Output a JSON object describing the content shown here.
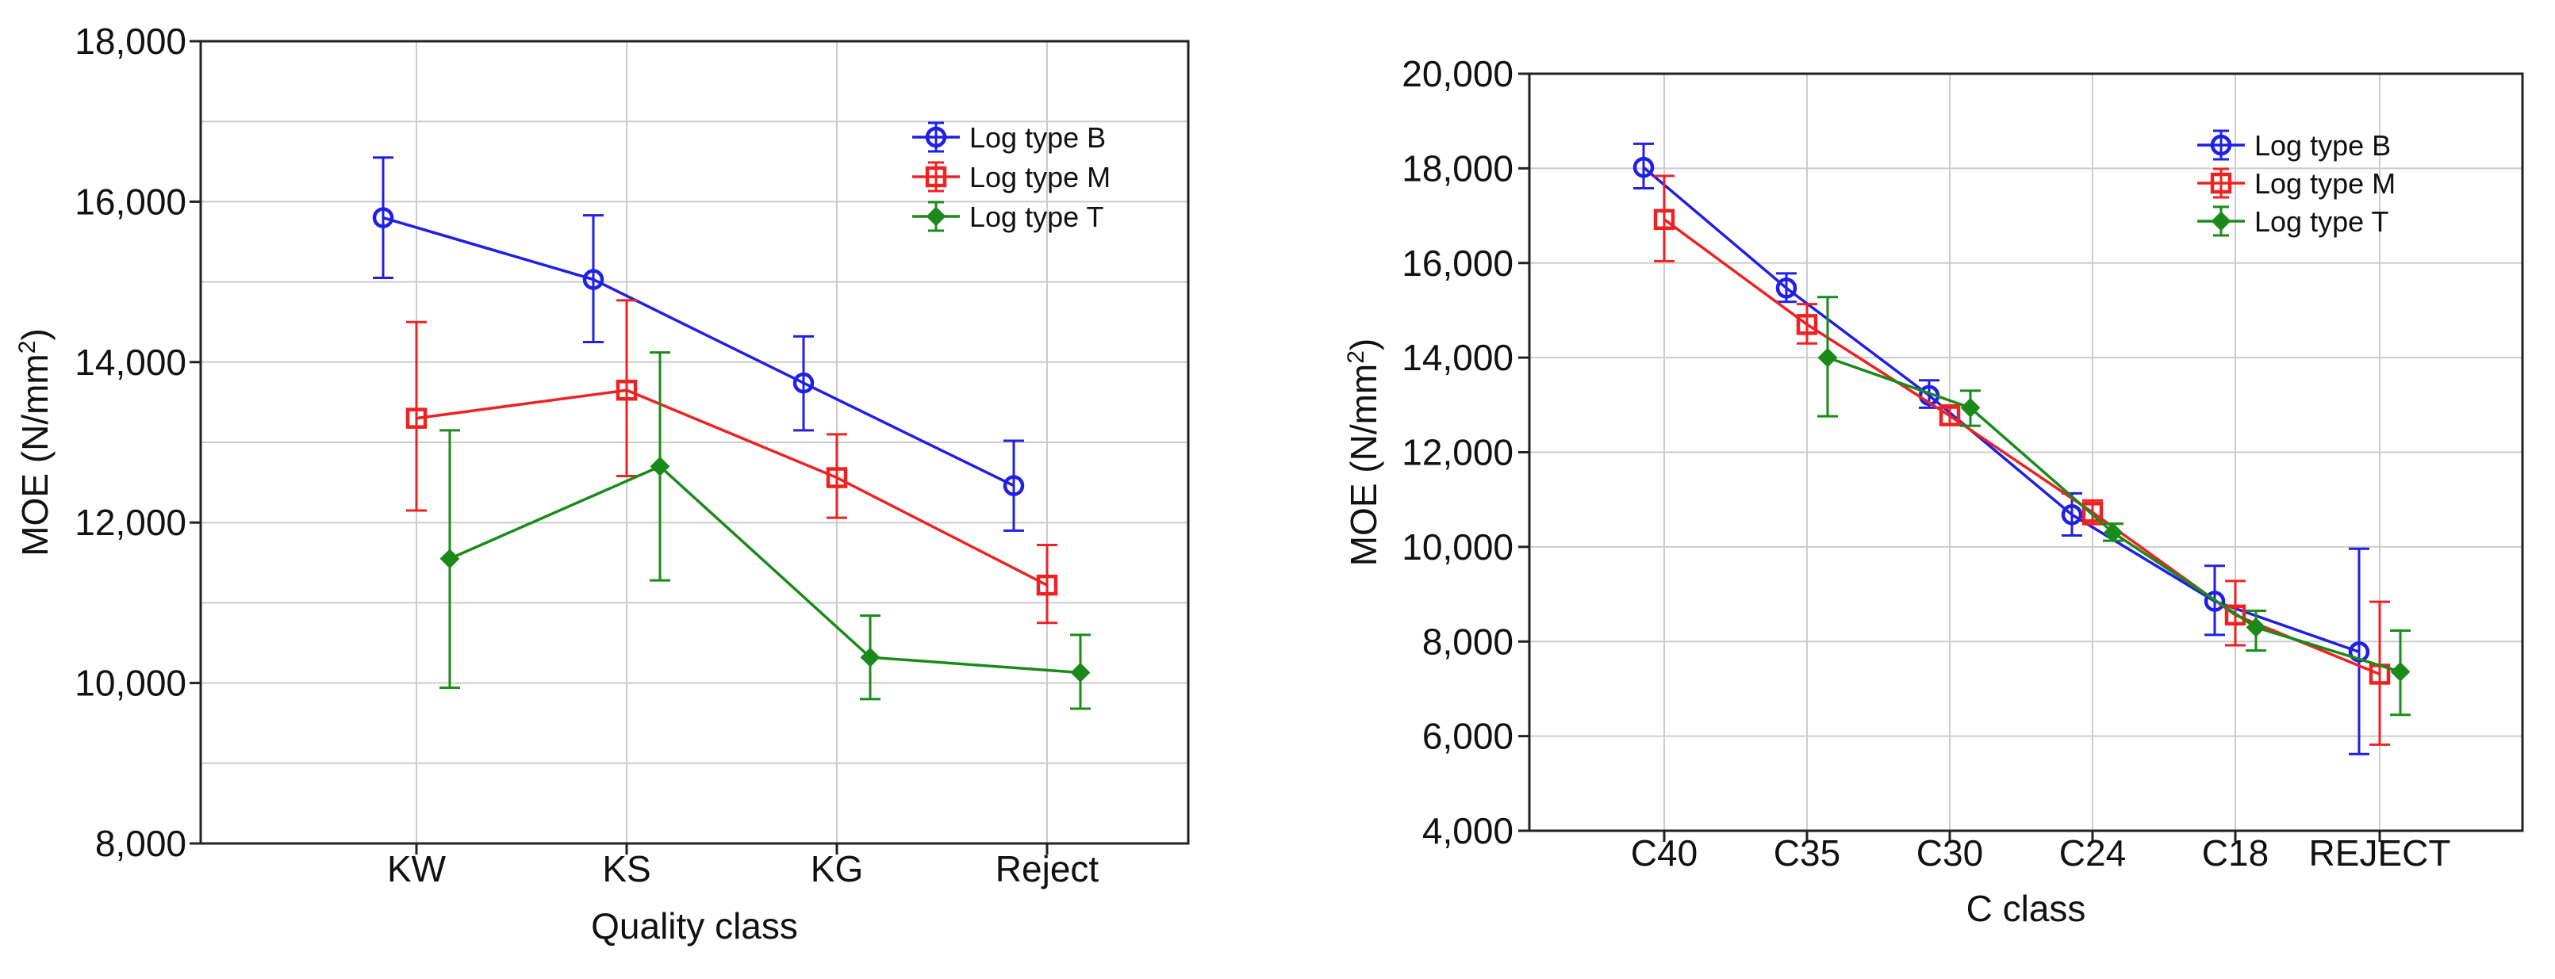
{
  "chart_data": [
    {
      "type": "line",
      "xlabel": "Quality class",
      "ylabel": "MOE (N/mm²)",
      "ylabel_main": "MOE (N/mm",
      "ylabel_sup": "2",
      "ylabel_close": ")",
      "categories": [
        "KW",
        "KS",
        "KG",
        "Reject"
      ],
      "ylim": [
        8000,
        18000
      ],
      "yticks": [
        8000,
        10000,
        12000,
        14000,
        16000,
        18000
      ],
      "ytick_labels": [
        "8,000",
        "10,000",
        "12,000",
        "14,000",
        "16,000",
        "18,000"
      ],
      "grid": true,
      "legend_position": "top-right",
      "series": [
        {
          "name": "Log type B",
          "color": "#1f1fe6",
          "marker": "circle",
          "values": [
            15800,
            15030,
            13740,
            12460
          ],
          "lower": [
            15050,
            14250,
            13150,
            11900
          ],
          "upper": [
            16550,
            15830,
            14320,
            13020
          ]
        },
        {
          "name": "Log type M",
          "color": "#ee2222",
          "marker": "square",
          "values": [
            13300,
            13650,
            12560,
            11220
          ],
          "lower": [
            12150,
            12580,
            12060,
            10750
          ],
          "upper": [
            14500,
            14770,
            13100,
            11720
          ]
        },
        {
          "name": "Log type T",
          "color": "#1a8a1a",
          "marker": "diamond",
          "values": [
            11550,
            12700,
            10320,
            10130
          ],
          "lower": [
            9940,
            11280,
            9800,
            9680
          ],
          "upper": [
            13150,
            14120,
            10840,
            10600
          ]
        }
      ]
    },
    {
      "type": "line",
      "xlabel": "C class",
      "ylabel": "MOE (N/mm²)",
      "ylabel_main": "MOE (N/mm",
      "ylabel_sup": "2",
      "ylabel_close": ")",
      "categories": [
        "C40",
        "C35",
        "C30",
        "C24",
        "C18",
        "REJECT"
      ],
      "ylim": [
        4000,
        20000
      ],
      "yticks": [
        4000,
        6000,
        8000,
        10000,
        12000,
        14000,
        16000,
        18000,
        20000
      ],
      "ytick_labels": [
        "4,000",
        "6,000",
        "8,000",
        "10,000",
        "12,000",
        "14,000",
        "16,000",
        "18,000",
        "20,000"
      ],
      "grid": true,
      "legend_position": "top-right",
      "series": [
        {
          "name": "Log type B",
          "color": "#1f1fe6",
          "marker": "circle",
          "values": [
            18020,
            15470,
            13200,
            10680,
            8850,
            7780
          ],
          "lower": [
            17580,
            15180,
            12940,
            10240,
            8140,
            5620
          ],
          "upper": [
            18520,
            15780,
            13520,
            11130,
            9600,
            9960
          ]
        },
        {
          "name": "Log type M",
          "color": "#ee2222",
          "marker": "square",
          "values": [
            16920,
            14700,
            12770,
            10730,
            8560,
            7310
          ],
          "lower": [
            16040,
            14300,
            12580,
            10480,
            7920,
            5820
          ],
          "upper": [
            17840,
            15130,
            12990,
            10980,
            9280,
            8840
          ]
        },
        {
          "name": "Log type T",
          "color": "#1a8a1a",
          "marker": "diamond",
          "values": [
            null,
            14000,
            12940,
            10300,
            8300,
            7360
          ],
          "lower": [
            null,
            12760,
            12560,
            10130,
            7810,
            6450
          ],
          "upper": [
            null,
            15280,
            13300,
            10490,
            8650,
            8230
          ]
        }
      ]
    }
  ]
}
